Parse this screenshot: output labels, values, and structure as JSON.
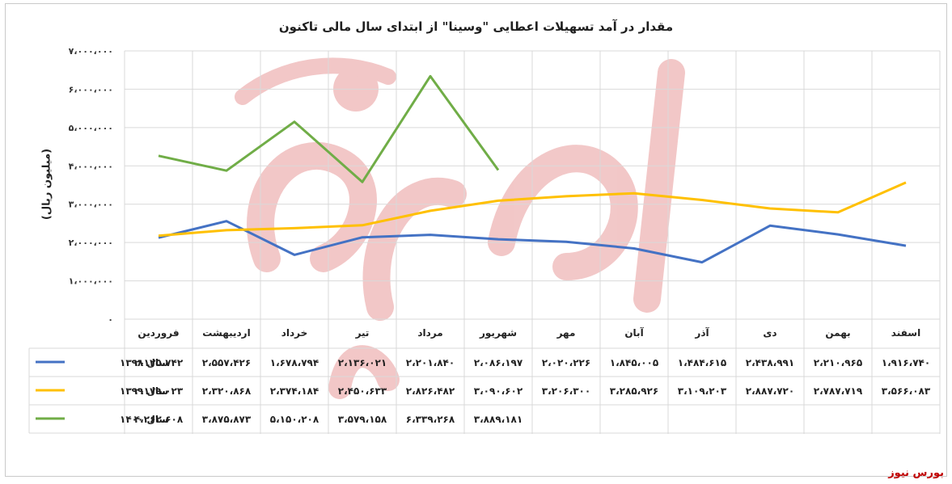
{
  "chart_data": {
    "type": "line",
    "title": "مقدار در آمد تسهیلات اعطایی \"وسینا\" از ابتدای سال مالی تاکنون",
    "ylabel": "(میلیون ریال)",
    "xlabel": "",
    "ylim": [
      0,
      7000000
    ],
    "y_ticks": [
      0,
      1000000,
      2000000,
      3000000,
      4000000,
      5000000,
      6000000,
      7000000
    ],
    "y_tick_labels": [
      "۰",
      "۱،۰۰۰،۰۰۰",
      "۲،۰۰۰،۰۰۰",
      "۳،۰۰۰،۰۰۰",
      "۴،۰۰۰،۰۰۰",
      "۵،۰۰۰،۰۰۰",
      "۶،۰۰۰،۰۰۰",
      "۷،۰۰۰،۰۰۰"
    ],
    "grid": true,
    "legend": "left",
    "categories": [
      "فروردین",
      "اردیبهشت",
      "خرداد",
      "تیر",
      "مرداد",
      "شهریور",
      "مهر",
      "آبان",
      "آذر",
      "دی",
      "بهمن",
      "اسفند"
    ],
    "series": [
      {
        "name": "سال ۱۳۹۸",
        "color": "#4472c4",
        "values": [
          2125742,
          2557426,
          1678794,
          2136021,
          2201840,
          2086197,
          2020226,
          1845005,
          1484615,
          2438991,
          2210965,
          1916740
        ],
        "labels": [
          "۲،۱۲۵،۷۴۲",
          "۲،۵۵۷،۴۲۶",
          "۱،۶۷۸،۷۹۴",
          "۲،۱۳۶،۰۲۱",
          "۲،۲۰۱،۸۴۰",
          "۲،۰۸۶،۱۹۷",
          "۲،۰۲۰،۲۲۶",
          "۱،۸۴۵،۰۰۵",
          "۱،۴۸۴،۶۱۵",
          "۲،۴۳۸،۹۹۱",
          "۲،۲۱۰،۹۶۵",
          "۱،۹۱۶،۷۴۰"
        ]
      },
      {
        "name": "سال ۱۳۹۹",
        "color": "#ffc000",
        "values": [
          2179023,
          2320868,
          2374184,
          2450633,
          2826482,
          3090602,
          3206300,
          3285926,
          3109203,
          2887720,
          2787719,
          3566083
        ],
        "labels": [
          "۲،۱۷۹،۰۲۳",
          "۲،۳۲۰،۸۶۸",
          "۲،۳۷۴،۱۸۴",
          "۲،۴۵۰،۶۳۳",
          "۲،۸۲۶،۴۸۲",
          "۳،۰۹۰،۶۰۲",
          "۳،۲۰۶،۳۰۰",
          "۳،۲۸۵،۹۲۶",
          "۳،۱۰۹،۲۰۳",
          "۲،۸۸۷،۷۲۰",
          "۲،۷۸۷،۷۱۹",
          "۳،۵۶۶،۰۸۳"
        ]
      },
      {
        "name": "سال ۱۴۰۰",
        "color": "#70ad47",
        "values": [
          4262608,
          3875873,
          5150208,
          3579158,
          6339268,
          3889181,
          null,
          null,
          null,
          null,
          null,
          null
        ],
        "labels": [
          "۴،۲۶۲،۶۰۸",
          "۳،۸۷۵،۸۷۳",
          "۵،۱۵۰،۲۰۸",
          "۳،۵۷۹،۱۵۸",
          "۶،۳۳۹،۲۶۸",
          "۳،۸۸۹،۱۸۱",
          "",
          "",
          "",
          "",
          "",
          ""
        ]
      }
    ]
  },
  "watermark": "بورس نیوز"
}
